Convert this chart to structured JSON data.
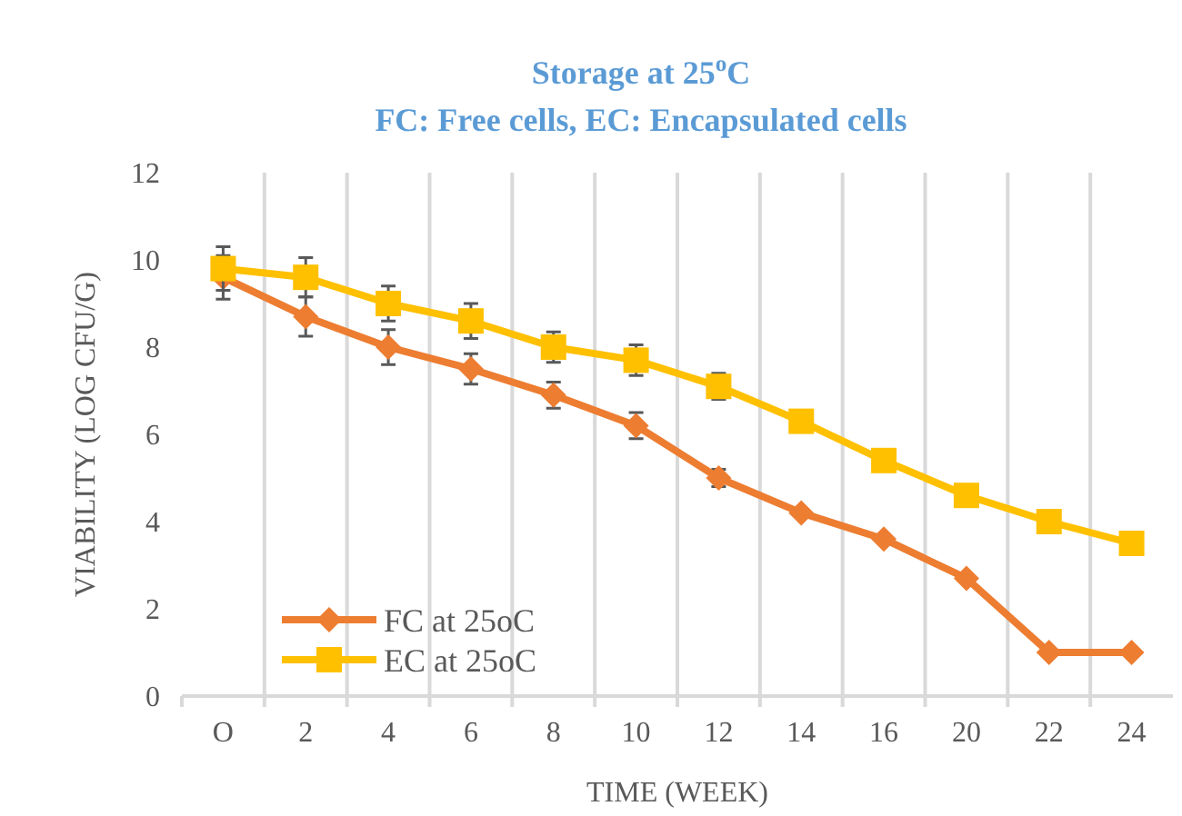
{
  "chart_data": {
    "type": "line",
    "title": "Storage at 25$^{o}$C",
    "subtitle": "FC: Free cells, EC: Encapsulated cells",
    "xlabel": "TIME (WEEK)",
    "ylabel": "VIABILITY (LOG CFU/G)",
    "categories": [
      "O",
      "2",
      "4",
      "6",
      "8",
      "10",
      "12",
      "14",
      "16",
      "20",
      "22",
      "24"
    ],
    "series": [
      {
        "name": "FC at 25oC",
        "color": "#ed7d31",
        "marker": "diamond",
        "values": [
          9.6,
          8.7,
          8.0,
          7.5,
          6.9,
          6.2,
          5.0,
          4.2,
          3.6,
          2.7,
          1.0,
          1.0
        ],
        "errors": [
          0.5,
          0.45,
          0.4,
          0.35,
          0.3,
          0.3,
          0.2,
          null,
          null,
          null,
          null,
          null
        ]
      },
      {
        "name": "EC at 25oC",
        "color": "#ffc000",
        "marker": "square",
        "values": [
          9.8,
          9.6,
          9.0,
          8.6,
          8.0,
          7.7,
          7.1,
          6.3,
          5.4,
          4.6,
          4.0,
          3.5
        ],
        "errors": [
          0.5,
          0.45,
          0.4,
          0.4,
          0.35,
          0.35,
          0.3,
          null,
          null,
          null,
          null,
          null
        ]
      }
    ],
    "ylim": [
      0,
      12
    ],
    "yticks": [
      0,
      2,
      4,
      6,
      8,
      10,
      12
    ],
    "grid": "x",
    "legend": "bottom left",
    "line_style": "solid"
  }
}
